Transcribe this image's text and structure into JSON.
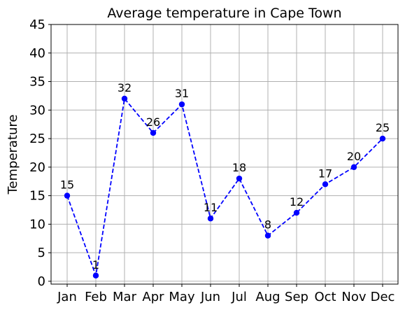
{
  "chart_data": {
    "type": "line",
    "title": "Average temperature in Cape Town",
    "xlabel": "",
    "ylabel": "Temperature",
    "categories": [
      "Jan",
      "Feb",
      "Mar",
      "Apr",
      "May",
      "Jun",
      "Jul",
      "Aug",
      "Sep",
      "Oct",
      "Nov",
      "Dec"
    ],
    "series": [
      {
        "values": [
          15,
          1,
          32,
          26,
          31,
          11,
          18,
          8,
          12,
          17,
          20,
          25
        ],
        "color": "#0000ff",
        "line_style": "dashed",
        "marker": "circle"
      }
    ],
    "ylim": [
      0,
      45
    ],
    "yticks": [
      0,
      5,
      10,
      15,
      20,
      25,
      30,
      35,
      40,
      45
    ],
    "grid": true,
    "data_labels": true,
    "legend": "none"
  }
}
